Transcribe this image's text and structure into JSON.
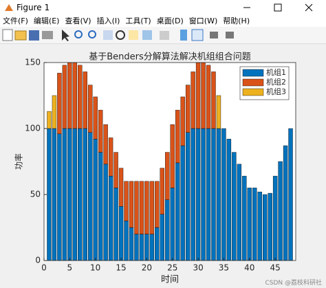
{
  "window_title": "Figure 1",
  "menu": [
    "文件(F)",
    "编辑(E)",
    "查看(V)",
    "插入(I)",
    "工具(T)",
    "桌面(D)",
    "窗口(W)",
    "帮助(H)"
  ],
  "watermark": "CSDN @荔枝科研社",
  "chart_data": {
    "type": "stacked_bar",
    "title": "基于Benders分解算法解决机组组合问题",
    "x_label": "时间",
    "y_label": "功率",
    "x": [
      1,
      2,
      3,
      4,
      5,
      6,
      7,
      8,
      9,
      10,
      11,
      12,
      13,
      14,
      15,
      16,
      17,
      18,
      19,
      20,
      21,
      22,
      23,
      24,
      25,
      26,
      27,
      28,
      29,
      30,
      31,
      32,
      33,
      34,
      35,
      36,
      37,
      38,
      39,
      40,
      41,
      42,
      43,
      44,
      45,
      46,
      47,
      48
    ],
    "series": [
      {
        "name": "机组1",
        "color": "#0072BD",
        "values": [
          100,
          100,
          96,
          100,
          100,
          100,
          100,
          100,
          97,
          92,
          82,
          73,
          64,
          55,
          41,
          30,
          25,
          20,
          20,
          20,
          20,
          25,
          35,
          46,
          55,
          74,
          87,
          97,
          100,
          100,
          100,
          100,
          100,
          100,
          100,
          92,
          82,
          73,
          64,
          55,
          55,
          52,
          50,
          51,
          64,
          75,
          87,
          100
        ]
      },
      {
        "name": "机组2",
        "color": "#D95319",
        "values": [
          0,
          0,
          46,
          48,
          50,
          50,
          48,
          43,
          36,
          32,
          32,
          30,
          29,
          27,
          29,
          30,
          35,
          40,
          40,
          40,
          40,
          35,
          35,
          36,
          48,
          40,
          37,
          36,
          43,
          50,
          50,
          48,
          43,
          0,
          0,
          0,
          0,
          0,
          0,
          0,
          0,
          0,
          0,
          0,
          0,
          0,
          0,
          0
        ]
      },
      {
        "name": "机组3",
        "color": "#EDB120",
        "values": [
          13,
          25,
          0,
          0,
          0,
          0,
          0,
          0,
          0,
          0,
          0,
          0,
          0,
          0,
          0,
          0,
          0,
          0,
          0,
          0,
          0,
          0,
          0,
          0,
          0,
          0,
          0,
          0,
          0,
          0,
          0,
          0,
          0,
          25,
          0,
          0,
          0,
          0,
          0,
          0,
          0,
          0,
          0,
          0,
          0,
          0,
          0,
          0
        ]
      }
    ],
    "xlim": [
      0,
      49
    ],
    "xticks": [
      0,
      5,
      10,
      15,
      20,
      25,
      30,
      35,
      40,
      45
    ],
    "ylim": [
      0,
      150
    ],
    "yticks": [
      0,
      50,
      100,
      150
    ],
    "legend_position": "upper right",
    "bar_width": 0.8
  }
}
